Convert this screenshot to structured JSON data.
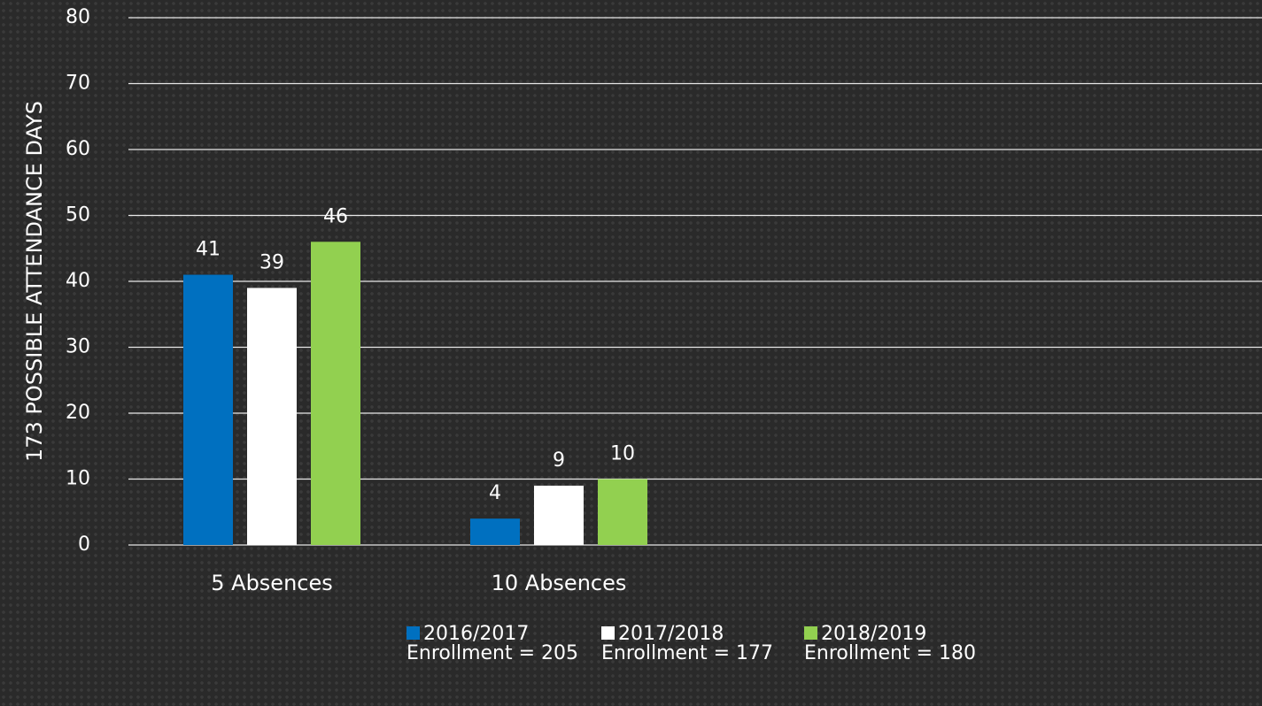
{
  "chart_data": {
    "type": "bar",
    "y_label": "173 POSSIBLE ATTENDANCE DAYS",
    "categories": [
      "5 Absences",
      "10 Absences",
      null,
      null
    ],
    "series": [
      {
        "name": "2016/2017 Enrollment = 205",
        "color": "#0070c0",
        "values": [
          41,
          4,
          null,
          null
        ]
      },
      {
        "name": "2017/2018 Enrollment = 177",
        "color": "#ffffff",
        "values": [
          39,
          9,
          null,
          null
        ]
      },
      {
        "name": "2018/2019 Enrollment = 180",
        "color": "#92d050",
        "values": [
          46,
          10,
          null,
          null
        ]
      }
    ],
    "ylim": [
      0,
      80
    ],
    "yticks": [
      0,
      10,
      20,
      30,
      40,
      50,
      60,
      70,
      80
    ],
    "grid": true,
    "legend": "bottom"
  }
}
